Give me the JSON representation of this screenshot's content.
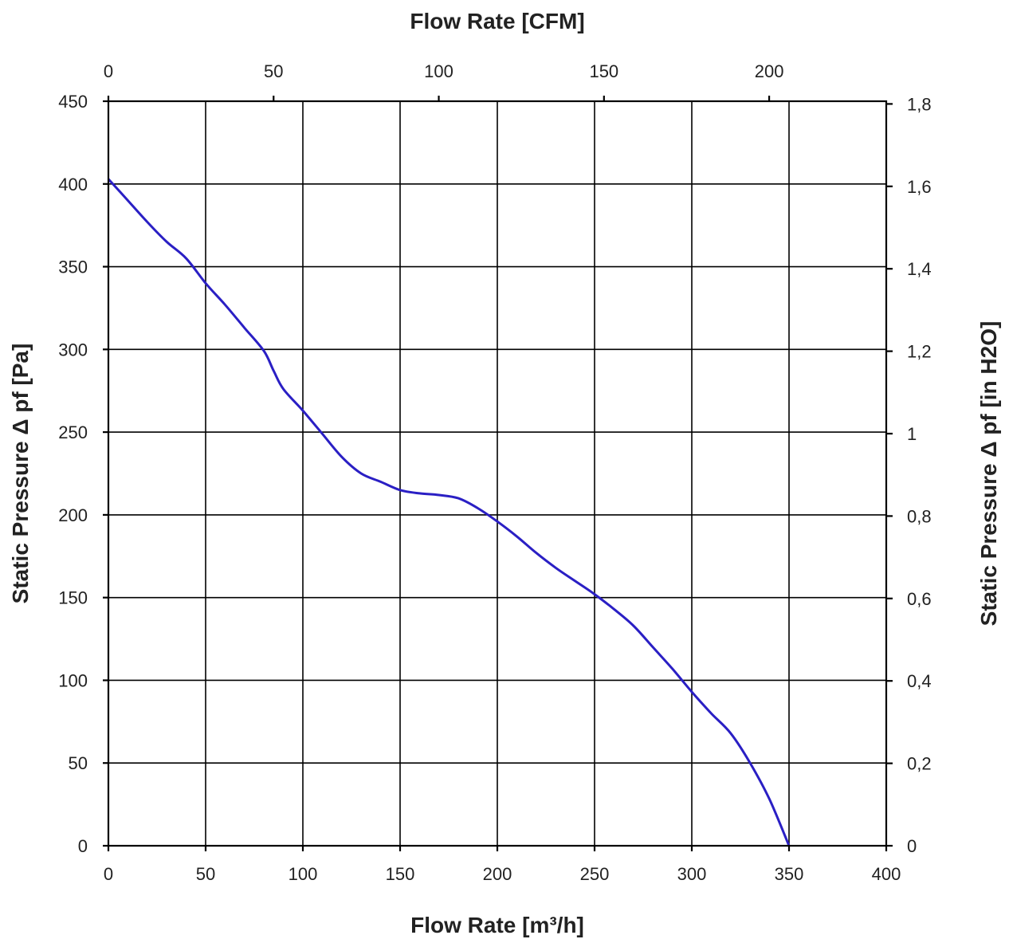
{
  "chart_data": {
    "type": "line",
    "x_top_label": "Flow Rate [CFM]",
    "x_bottom_label": "Flow Rate [m³/h]",
    "y_left_label": "Static Pressure Δ pf [Pa]",
    "y_right_label": "Static Pressure Δ pf [in H2O]",
    "x_bottom_ticks": [
      "0",
      "50",
      "100",
      "150",
      "200",
      "250",
      "300",
      "350",
      "400"
    ],
    "x_top_ticks": [
      "0",
      "50",
      "100",
      "150",
      "200"
    ],
    "y_left_ticks": [
      "0",
      "50",
      "100",
      "150",
      "200",
      "250",
      "300",
      "350",
      "400",
      "450"
    ],
    "y_right_ticks": [
      "0",
      "0,2",
      "0,4",
      "0,6",
      "0,8",
      "1",
      "1,2",
      "1,4",
      "1,6",
      "1,8"
    ],
    "xlim": [
      0,
      400
    ],
    "ylim": [
      0,
      450
    ],
    "grid": true,
    "series": [
      {
        "color": "#2a1fc4",
        "x": [
          0,
          10,
          20,
          30,
          40,
          50,
          60,
          70,
          80,
          85,
          90,
          100,
          110,
          120,
          130,
          140,
          150,
          160,
          170,
          180,
          190,
          200,
          210,
          220,
          230,
          240,
          250,
          260,
          270,
          280,
          290,
          300,
          310,
          320,
          330,
          340,
          350
        ],
        "y": [
          403,
          390,
          377,
          365,
          355,
          340,
          327,
          313,
          299,
          287,
          276,
          263,
          249,
          235,
          225,
          220,
          215,
          213,
          212,
          210,
          204,
          196,
          187,
          177,
          168,
          160,
          152,
          143,
          133,
          120,
          107,
          93,
          80,
          68,
          50,
          28,
          0
        ]
      }
    ]
  }
}
